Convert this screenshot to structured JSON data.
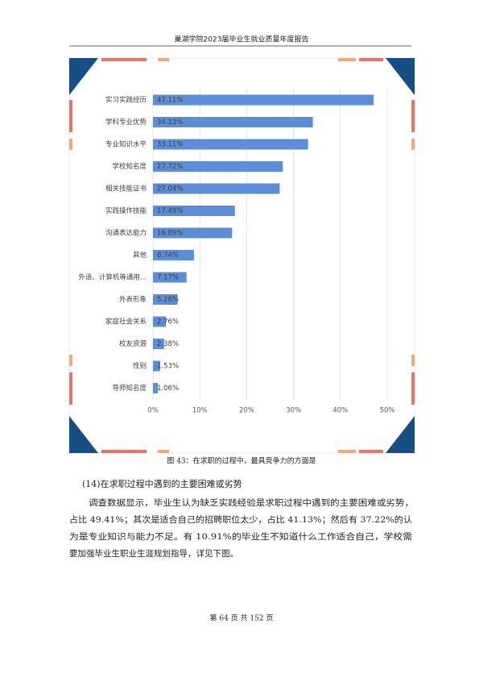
{
  "header": {
    "title": "巢湖学院2023届毕业生就业质量年度报告"
  },
  "chart_data": {
    "type": "bar",
    "orientation": "horizontal",
    "categories": [
      "实习实践经历",
      "学科专业优势",
      "专业知识水平",
      "学校知名度",
      "相关技能证书",
      "实践操作技能",
      "沟通表达能力",
      "其他",
      "外语、计算机等通用...",
      "外表形象",
      "家庭社会关系",
      "校友资源",
      "性别",
      "导师知名度"
    ],
    "values": [
      47.11,
      34.13,
      33.11,
      27.72,
      27.04,
      17.49,
      16.89,
      8.74,
      7.17,
      5.26,
      2.76,
      2.38,
      1.53,
      1.06
    ],
    "value_labels": [
      "47.11%",
      "34.13%",
      "33.11%",
      "27.72%",
      "27.04%",
      "17.49%",
      "16.89%",
      "8.74%",
      "7.17%",
      "5.26%",
      "2.76%",
      "2.38%",
      "1.53%",
      "1.06%"
    ],
    "color": "#5b8ed6",
    "xlim": [
      0,
      50
    ],
    "xticks": [
      {
        "value": 0,
        "label": "0%"
      },
      {
        "value": 10,
        "label": "10%"
      },
      {
        "value": 20,
        "label": "20%"
      },
      {
        "value": 30,
        "label": "30%"
      },
      {
        "value": 40,
        "label": "40%"
      },
      {
        "value": 50,
        "label": "50%"
      }
    ],
    "grid": true
  },
  "caption": "图 43：在求职的过程中，最具竞争力的方面是",
  "section": {
    "title": "(14)在求职过程中遇到的主要困难或劣势",
    "lines": [
      "调查数据显示，毕业生认为缺乏实践经验是求职过程中遇到的主要困难或劣势，",
      "占比 49.41%；其次是适合自己的招聘职位太少，占比 41.13%；然后有 37.22%的认",
      "为是专业知识与能力不足。有 10.91%的毕业生不知道什么工作适合自己，学校需",
      "要加强毕业生职业生涯规划指导，详见下图。"
    ]
  },
  "footer": "第 64 页 共 152 页"
}
